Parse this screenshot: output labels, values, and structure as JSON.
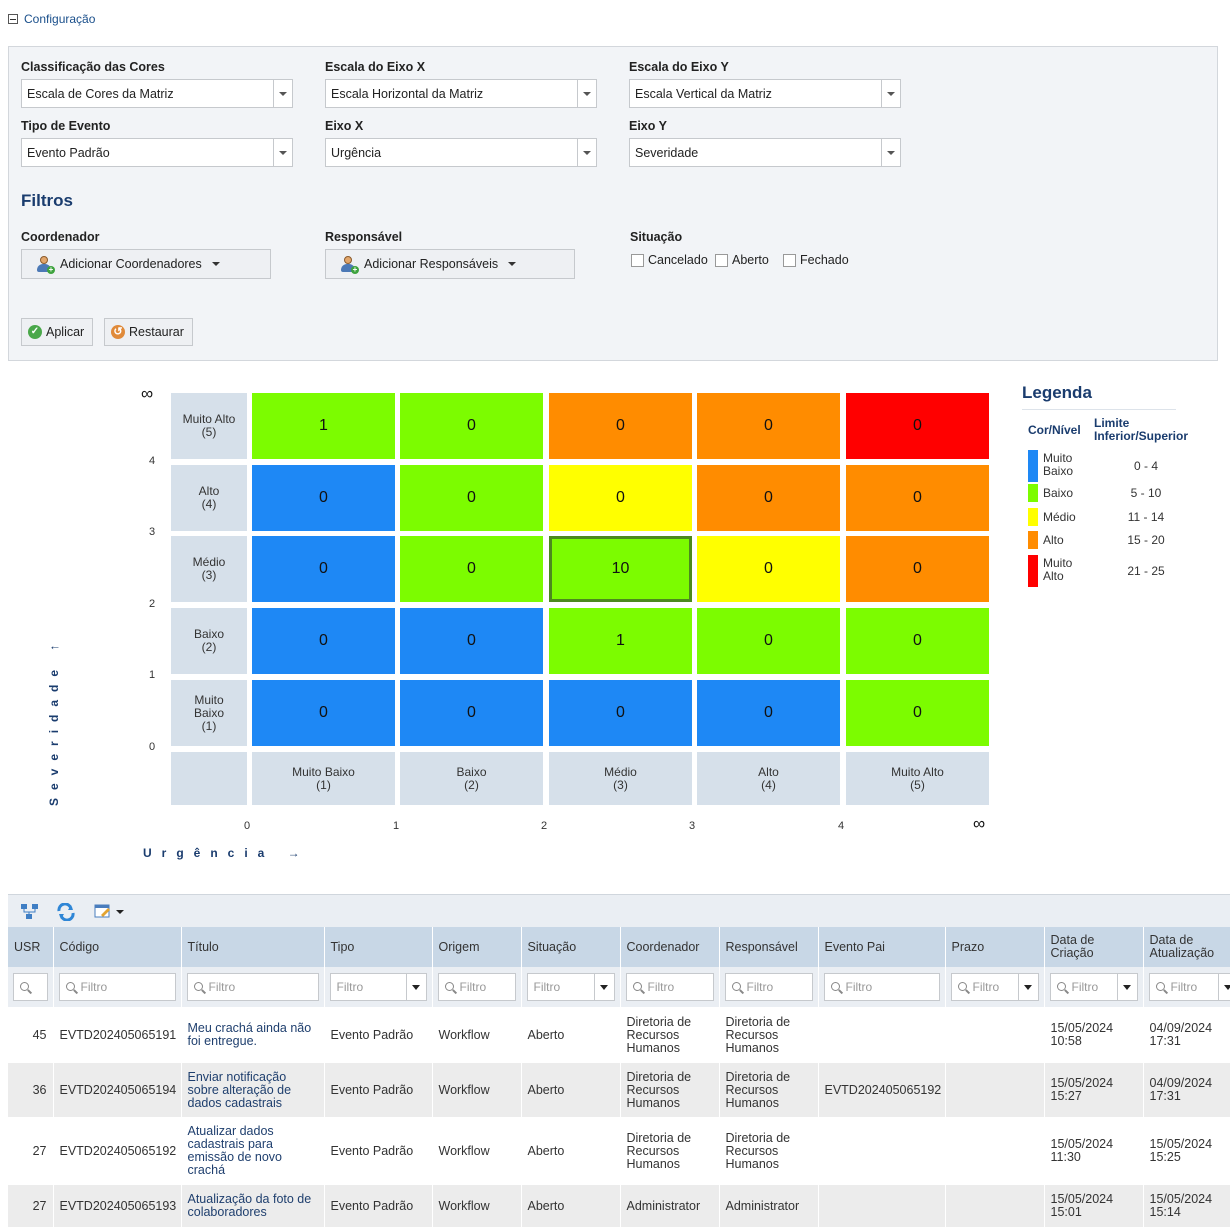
{
  "config": {
    "toggle_label": "Configuração",
    "fields": [
      {
        "label": "Classificação das Cores",
        "value": "Escala de Cores da Matriz"
      },
      {
        "label": "Escala do Eixo X",
        "value": "Escala Horizontal da Matriz"
      },
      {
        "label": "Escala do Eixo Y",
        "value": "Escala Vertical da Matriz"
      },
      {
        "label": "Tipo de Evento",
        "value": "Evento Padrão"
      },
      {
        "label": "Eixo X",
        "value": "Urgência"
      },
      {
        "label": "Eixo Y",
        "value": "Severidade"
      }
    ],
    "filters_title": "Filtros",
    "coordenador": {
      "label": "Coordenador",
      "button": "Adicionar Coordenadores"
    },
    "responsavel": {
      "label": "Responsável",
      "button": "Adicionar Responsáveis"
    },
    "situacao": {
      "label": "Situação",
      "options": [
        "Cancelado",
        "Aberto",
        "Fechado"
      ]
    },
    "apply_label": "Aplicar",
    "restore_label": "Restaurar"
  },
  "matrix": {
    "y_axis_title": "Severidade ↑",
    "x_axis_title": "Urgência →",
    "infinity": "∞",
    "y_ticks": [
      "4",
      "3",
      "2",
      "1",
      "0"
    ],
    "x_ticks": [
      "0",
      "1",
      "2",
      "3",
      "4"
    ],
    "row_labels": [
      "Muito Alto\n(5)",
      "Alto\n(4)",
      "Médio\n(3)",
      "Baixo\n(2)",
      "Muito\nBaixo\n(1)"
    ],
    "col_labels": [
      "Muito Baixo\n(1)",
      "Baixo\n(2)",
      "Médio\n(3)",
      "Alto\n(4)",
      "Muito Alto\n(5)"
    ],
    "values": [
      [
        "1",
        "0",
        "0",
        "0",
        "0"
      ],
      [
        "0",
        "0",
        "0",
        "0",
        "0"
      ],
      [
        "0",
        "0",
        "10",
        "0",
        "0"
      ],
      [
        "0",
        "0",
        "1",
        "0",
        "0"
      ],
      [
        "0",
        "0",
        "0",
        "0",
        "0"
      ]
    ],
    "levels": [
      [
        "baixo",
        "baixo",
        "alto",
        "alto",
        "muito_alto"
      ],
      [
        "muito_baixo",
        "baixo",
        "medio",
        "alto",
        "alto"
      ],
      [
        "muito_baixo",
        "baixo",
        "baixo",
        "medio",
        "alto"
      ],
      [
        "muito_baixo",
        "muito_baixo",
        "baixo",
        "baixo",
        "baixo"
      ],
      [
        "muito_baixo",
        "muito_baixo",
        "muito_baixo",
        "muito_baixo",
        "baixo"
      ]
    ],
    "selected_cell": [
      2,
      2
    ],
    "colors": {
      "muito_baixo": "#1e88f5",
      "baixo": "#7cfc00",
      "medio": "#ffff00",
      "alto": "#ff8c00",
      "muito_alto": "#ff0000",
      "selected_border": "#4c8a1e"
    }
  },
  "legend": {
    "title": "Legenda",
    "col1": "Cor/Nível",
    "col2": "Limite\nInferior/Superior",
    "items": [
      {
        "name": "Muito\nBaixo",
        "range": "0 - 4",
        "color": "#1e88f5"
      },
      {
        "name": "Baixo",
        "range": "5 - 10",
        "color": "#7cfc00"
      },
      {
        "name": "Médio",
        "range": "11 - 14",
        "color": "#ffff00"
      },
      {
        "name": "Alto",
        "range": "15 - 20",
        "color": "#ff8c00"
      },
      {
        "name": "Muito\nAlto",
        "range": "21 - 25",
        "color": "#ff0000"
      }
    ]
  },
  "table": {
    "headers": [
      "USR",
      "Código",
      "Título",
      "Tipo",
      "Origem",
      "Situação",
      "Coordenador",
      "Responsável",
      "Evento Pai",
      "Prazo",
      "Data de\nCriação",
      "Data de\nAtualização"
    ],
    "filter_placeholder": "Filtro",
    "rows": [
      [
        "45",
        "EVTD202405065191",
        "Meu crachá ainda não foi entregue.",
        "Evento Padrão",
        "Workflow",
        "Aberto",
        "Diretoria de Recursos Humanos",
        "Diretoria de Recursos Humanos",
        "",
        "",
        "15/05/2024 10:58",
        "04/09/2024 17:31"
      ],
      [
        "36",
        "EVTD202405065194",
        "Enviar notificação sobre alteração de dados cadastrais",
        "Evento Padrão",
        "Workflow",
        "Aberto",
        "Diretoria de Recursos Humanos",
        "Diretoria de Recursos Humanos",
        "EVTD202405065192",
        "",
        "15/05/2024 15:27",
        "04/09/2024 17:31"
      ],
      [
        "27",
        "EVTD202405065192",
        "Atualizar dados cadastrais para emissão de novo crachá",
        "Evento Padrão",
        "Workflow",
        "Aberto",
        "Diretoria de Recursos Humanos",
        "Diretoria de Recursos Humanos",
        "",
        "",
        "15/05/2024 11:30",
        "15/05/2024 15:25"
      ],
      [
        "27",
        "EVTD202405065193",
        "Atualização da foto de colaboradores",
        "Evento Padrão",
        "Workflow",
        "Aberto",
        "Administrator",
        "Administrator",
        "",
        "",
        "15/05/2024 15:01",
        "15/05/2024 15:14"
      ]
    ]
  }
}
